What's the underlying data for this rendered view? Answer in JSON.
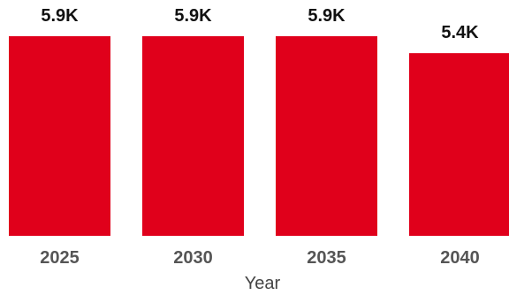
{
  "chart_data": {
    "type": "bar",
    "categories": [
      "2025",
      "2030",
      "2035",
      "2040"
    ],
    "values": [
      5900,
      5900,
      5900,
      5400
    ],
    "data_labels": [
      "5.9K",
      "5.9K",
      "5.9K",
      "5.4K"
    ],
    "xlabel": "Year",
    "ylabel": "",
    "ylim": [
      0,
      5900
    ],
    "grid": false,
    "legend": "none",
    "bar_color": "#e0001b"
  }
}
